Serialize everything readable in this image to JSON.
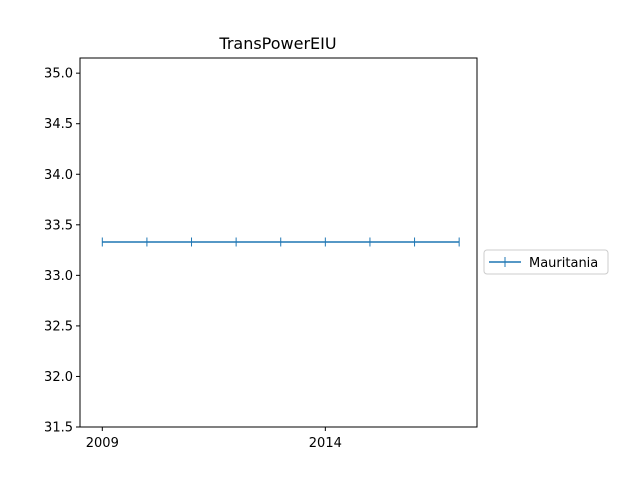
{
  "chart_data": {
    "type": "line",
    "title": "TransPowerEIU",
    "xlabel": "",
    "ylabel": "",
    "x": [
      2009,
      2010,
      2011,
      2012,
      2013,
      2014,
      2015,
      2016,
      2017
    ],
    "xticks": [
      2009,
      2014
    ],
    "xtick_labels": [
      "2009",
      "2014"
    ],
    "xlim": [
      2008.5,
      2017.4
    ],
    "ylim": [
      31.5,
      35.15
    ],
    "yticks": [
      31.5,
      32.0,
      32.5,
      33.0,
      33.5,
      34.0,
      34.5,
      35.0
    ],
    "ytick_labels": [
      "31.5",
      "32.0",
      "32.5",
      "33.0",
      "33.5",
      "34.0",
      "34.5",
      "35.0"
    ],
    "grid": false,
    "legend_position": "right",
    "series": [
      {
        "name": "Mauritania",
        "color": "#1f77b4",
        "marker": "vertical-tick",
        "values": [
          33.33,
          33.33,
          33.33,
          33.33,
          33.33,
          33.33,
          33.33,
          33.33,
          33.33
        ]
      }
    ]
  }
}
